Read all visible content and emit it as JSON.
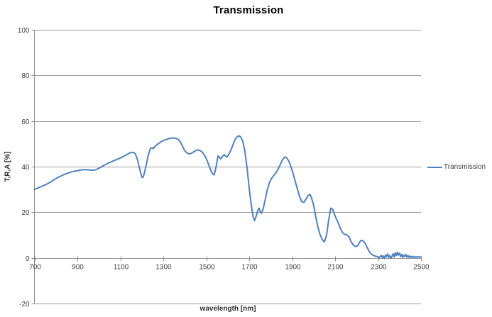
{
  "chart_data": {
    "type": "line",
    "title": "Transmission",
    "xlabel": "wavelength [nm]",
    "ylabel": "T,R,A [%]",
    "xlim": [
      700,
      2500
    ],
    "ylim": [
      -20,
      100
    ],
    "x_ticks": [
      700,
      900,
      1100,
      1300,
      1500,
      1700,
      1900,
      2100,
      2300,
      2500
    ],
    "y_ticks": [
      100,
      80,
      60,
      40,
      20,
      0,
      -20
    ],
    "grid": "horizontal-major-only",
    "legend_position": "right-middle",
    "series": [
      {
        "name": "Transmission",
        "color": "#4F81BD",
        "points": [
          [
            700,
            30.0
          ],
          [
            710,
            30.4
          ],
          [
            720,
            30.8
          ],
          [
            730,
            31.2
          ],
          [
            740,
            31.6
          ],
          [
            750,
            32.0
          ],
          [
            760,
            32.5
          ],
          [
            770,
            33.0
          ],
          [
            780,
            33.6
          ],
          [
            790,
            34.2
          ],
          [
            800,
            34.8
          ],
          [
            810,
            35.3
          ],
          [
            820,
            35.7
          ],
          [
            830,
            36.2
          ],
          [
            840,
            36.6
          ],
          [
            850,
            37.0
          ],
          [
            860,
            37.3
          ],
          [
            870,
            37.6
          ],
          [
            880,
            37.9
          ],
          [
            890,
            38.1
          ],
          [
            900,
            38.2
          ],
          [
            910,
            38.4
          ],
          [
            920,
            38.6
          ],
          [
            930,
            38.7
          ],
          [
            940,
            38.7
          ],
          [
            950,
            38.6
          ],
          [
            960,
            38.5
          ],
          [
            970,
            38.4
          ],
          [
            980,
            38.5
          ],
          [
            990,
            38.8
          ],
          [
            1000,
            39.3
          ],
          [
            1010,
            39.8
          ],
          [
            1020,
            40.4
          ],
          [
            1030,
            40.9
          ],
          [
            1040,
            41.4
          ],
          [
            1050,
            41.8
          ],
          [
            1060,
            42.2
          ],
          [
            1070,
            42.6
          ],
          [
            1080,
            43.0
          ],
          [
            1090,
            43.4
          ],
          [
            1100,
            43.8
          ],
          [
            1110,
            44.3
          ],
          [
            1120,
            44.8
          ],
          [
            1130,
            45.3
          ],
          [
            1140,
            45.8
          ],
          [
            1150,
            46.2
          ],
          [
            1160,
            46.3
          ],
          [
            1170,
            45.6
          ],
          [
            1180,
            43.0
          ],
          [
            1190,
            39.0
          ],
          [
            1200,
            35.4
          ],
          [
            1205,
            35.2
          ],
          [
            1210,
            36.5
          ],
          [
            1220,
            40.5
          ],
          [
            1230,
            45.0
          ],
          [
            1240,
            48.0
          ],
          [
            1248,
            48.3
          ],
          [
            1253,
            47.9
          ],
          [
            1260,
            48.7
          ],
          [
            1270,
            49.6
          ],
          [
            1280,
            50.3
          ],
          [
            1290,
            50.9
          ],
          [
            1300,
            51.4
          ],
          [
            1310,
            51.8
          ],
          [
            1320,
            52.1
          ],
          [
            1330,
            52.4
          ],
          [
            1340,
            52.5
          ],
          [
            1350,
            52.6
          ],
          [
            1360,
            52.4
          ],
          [
            1370,
            51.9
          ],
          [
            1380,
            50.8
          ],
          [
            1390,
            48.8
          ],
          [
            1400,
            47.0
          ],
          [
            1410,
            46.0
          ],
          [
            1420,
            45.6
          ],
          [
            1430,
            45.8
          ],
          [
            1440,
            46.4
          ],
          [
            1450,
            47.0
          ],
          [
            1460,
            47.4
          ],
          [
            1470,
            47.1
          ],
          [
            1480,
            46.5
          ],
          [
            1490,
            45.3
          ],
          [
            1500,
            43.6
          ],
          [
            1510,
            41.2
          ],
          [
            1520,
            38.6
          ],
          [
            1530,
            36.8
          ],
          [
            1537,
            36.4
          ],
          [
            1545,
            39.5
          ],
          [
            1555,
            44.7
          ],
          [
            1562,
            44.1
          ],
          [
            1568,
            43.4
          ],
          [
            1575,
            44.4
          ],
          [
            1583,
            45.3
          ],
          [
            1590,
            44.6
          ],
          [
            1597,
            44.3
          ],
          [
            1605,
            45.4
          ],
          [
            1615,
            47.3
          ],
          [
            1625,
            49.8
          ],
          [
            1635,
            52.0
          ],
          [
            1645,
            53.2
          ],
          [
            1653,
            53.5
          ],
          [
            1660,
            53.1
          ],
          [
            1670,
            51.2
          ],
          [
            1680,
            46.8
          ],
          [
            1690,
            39.5
          ],
          [
            1700,
            30.5
          ],
          [
            1710,
            23.0
          ],
          [
            1718,
            18.2
          ],
          [
            1725,
            16.3
          ],
          [
            1732,
            18.2
          ],
          [
            1740,
            20.8
          ],
          [
            1746,
            21.8
          ],
          [
            1752,
            20.2
          ],
          [
            1757,
            19.6
          ],
          [
            1765,
            21.5
          ],
          [
            1775,
            25.8
          ],
          [
            1785,
            30.2
          ],
          [
            1795,
            33.2
          ],
          [
            1805,
            35.0
          ],
          [
            1815,
            36.2
          ],
          [
            1825,
            37.4
          ],
          [
            1835,
            39.0
          ],
          [
            1845,
            41.0
          ],
          [
            1855,
            43.0
          ],
          [
            1865,
            44.2
          ],
          [
            1875,
            43.9
          ],
          [
            1885,
            42.3
          ],
          [
            1895,
            39.8
          ],
          [
            1905,
            36.8
          ],
          [
            1915,
            33.4
          ],
          [
            1925,
            30.0
          ],
          [
            1935,
            26.8
          ],
          [
            1945,
            24.6
          ],
          [
            1955,
            24.4
          ],
          [
            1965,
            25.9
          ],
          [
            1975,
            27.4
          ],
          [
            1983,
            27.8
          ],
          [
            1990,
            26.4
          ],
          [
            2000,
            23.0
          ],
          [
            2010,
            18.0
          ],
          [
            2020,
            13.5
          ],
          [
            2030,
            10.2
          ],
          [
            2040,
            8.0
          ],
          [
            2050,
            7.0
          ],
          [
            2060,
            9.8
          ],
          [
            2070,
            16.5
          ],
          [
            2080,
            21.8
          ],
          [
            2088,
            21.4
          ],
          [
            2095,
            19.6
          ],
          [
            2105,
            17.3
          ],
          [
            2115,
            15.3
          ],
          [
            2125,
            12.8
          ],
          [
            2135,
            11.0
          ],
          [
            2145,
            10.3
          ],
          [
            2155,
            10.1
          ],
          [
            2165,
            9.2
          ],
          [
            2175,
            7.0
          ],
          [
            2185,
            5.6
          ],
          [
            2195,
            5.0
          ],
          [
            2205,
            5.3
          ],
          [
            2215,
            7.0
          ],
          [
            2222,
            7.7
          ],
          [
            2230,
            7.5
          ],
          [
            2240,
            6.4
          ],
          [
            2250,
            4.4
          ],
          [
            2260,
            2.6
          ],
          [
            2270,
            1.6
          ],
          [
            2280,
            1.0
          ],
          [
            2290,
            0.7
          ],
          [
            2300,
            0.5
          ],
          [
            2305,
            -0.1
          ],
          [
            2310,
            0.6
          ],
          [
            2315,
            1.1
          ],
          [
            2320,
            0.1
          ],
          [
            2325,
            0.9
          ],
          [
            2330,
            -0.3
          ],
          [
            2335,
            1.3
          ],
          [
            2340,
            0.6
          ],
          [
            2345,
            1.7
          ],
          [
            2350,
            0.2
          ],
          [
            2355,
            1.0
          ],
          [
            2360,
            -0.2
          ],
          [
            2365,
            0.7
          ],
          [
            2370,
            1.8
          ],
          [
            2375,
            0.4
          ],
          [
            2380,
            2.2
          ],
          [
            2385,
            1.0
          ],
          [
            2390,
            2.5
          ],
          [
            2395,
            1.2
          ],
          [
            2400,
            2.1
          ],
          [
            2405,
            0.5
          ],
          [
            2410,
            1.6
          ],
          [
            2415,
            0.2
          ],
          [
            2420,
            1.2
          ],
          [
            2425,
            0.6
          ],
          [
            2430,
            1.5
          ],
          [
            2435,
            0.3
          ],
          [
            2440,
            1.0
          ],
          [
            2445,
            0.2
          ],
          [
            2450,
            0.8
          ],
          [
            2455,
            0.3
          ],
          [
            2460,
            0.7
          ],
          [
            2465,
            0.2
          ],
          [
            2470,
            0.6
          ],
          [
            2475,
            0.2
          ],
          [
            2480,
            0.5
          ],
          [
            2485,
            0.3
          ],
          [
            2490,
            0.6
          ],
          [
            2495,
            0.3
          ],
          [
            2500,
            0.4
          ]
        ]
      }
    ]
  },
  "colors": {
    "line": "#4F81BD",
    "grid": "#9b9b9b",
    "axis": "#8c8c8c",
    "tick_text": "#3f3f3f",
    "background": "#ffffff"
  }
}
